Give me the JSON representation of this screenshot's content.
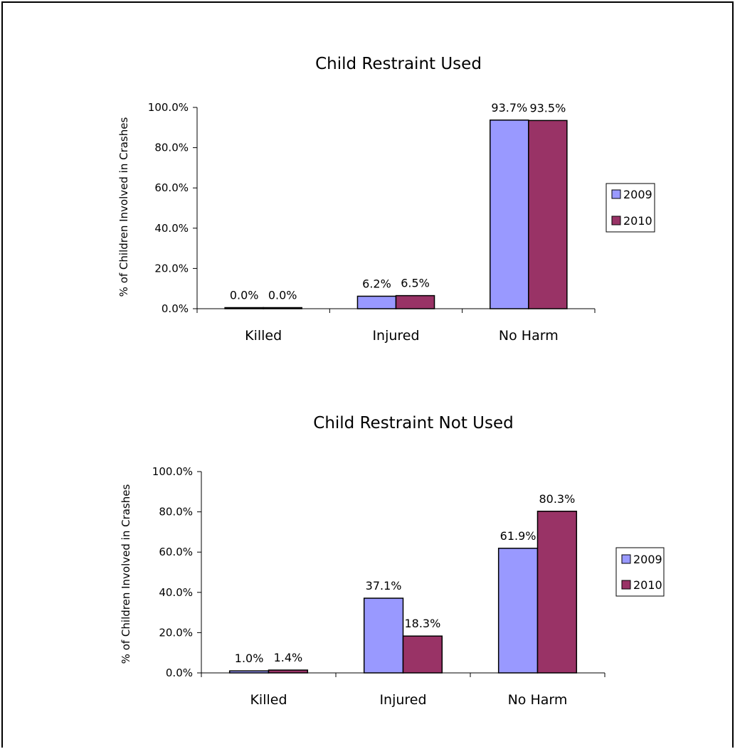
{
  "chart_data": [
    {
      "type": "bar",
      "title": "Child Restraint Used",
      "ylabel": "% of Children Involved in Crashes",
      "xlabel": "",
      "ylim": [
        0,
        100
      ],
      "yticks": [
        "0.0%",
        "20.0%",
        "40.0%",
        "60.0%",
        "80.0%",
        "100.0%"
      ],
      "categories": [
        "Killed",
        "Injured",
        "No Harm"
      ],
      "series": [
        {
          "name": "2009",
          "values": [
            0.0,
            6.2,
            93.7
          ],
          "labels": [
            "0.0%",
            "6.2%",
            "93.7%"
          ],
          "color": "#9999ff"
        },
        {
          "name": "2010",
          "values": [
            0.0,
            6.5,
            93.5
          ],
          "labels": [
            "0.0%",
            "6.5%",
            "93.5%"
          ],
          "color": "#993366"
        }
      ],
      "legend": "right",
      "grid": false
    },
    {
      "type": "bar",
      "title": "Child Restraint Not Used",
      "ylabel": "% of Children Involved in Crashes",
      "xlabel": "",
      "ylim": [
        0,
        100
      ],
      "yticks": [
        "0.0%",
        "20.0%",
        "40.0%",
        "60.0%",
        "80.0%",
        "100.0%"
      ],
      "categories": [
        "Killed",
        "Injured",
        "No Harm"
      ],
      "series": [
        {
          "name": "2009",
          "values": [
            1.0,
            37.1,
            61.9
          ],
          "labels": [
            "1.0%",
            "37.1%",
            "61.9%"
          ],
          "color": "#9999ff"
        },
        {
          "name": "2010",
          "values": [
            1.4,
            18.3,
            80.3
          ],
          "labels": [
            "1.4%",
            "18.3%",
            "80.3%"
          ],
          "color": "#993366"
        }
      ],
      "legend": "right",
      "grid": false
    }
  ]
}
